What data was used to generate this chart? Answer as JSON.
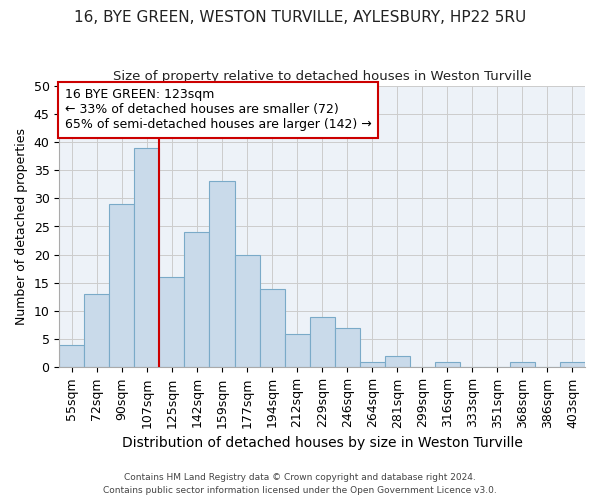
{
  "title1": "16, BYE GREEN, WESTON TURVILLE, AYLESBURY, HP22 5RU",
  "title2": "Size of property relative to detached houses in Weston Turville",
  "xlabel": "Distribution of detached houses by size in Weston Turville",
  "ylabel": "Number of detached properties",
  "bin_labels": [
    "55sqm",
    "72sqm",
    "90sqm",
    "107sqm",
    "125sqm",
    "142sqm",
    "159sqm",
    "177sqm",
    "194sqm",
    "212sqm",
    "229sqm",
    "246sqm",
    "264sqm",
    "281sqm",
    "299sqm",
    "316sqm",
    "333sqm",
    "351sqm",
    "368sqm",
    "386sqm",
    "403sqm"
  ],
  "bar_heights": [
    4,
    13,
    29,
    39,
    16,
    24,
    33,
    20,
    14,
    6,
    9,
    7,
    1,
    2,
    0,
    1,
    0,
    0,
    1,
    0,
    1
  ],
  "bar_color": "#c9daea",
  "bar_edge_color": "#7aaac8",
  "vline_color": "#cc0000",
  "vline_x_index": 4,
  "annotation_text": "16 BYE GREEN: 123sqm\n← 33% of detached houses are smaller (72)\n65% of semi-detached houses are larger (142) →",
  "annotation_box_color": "white",
  "annotation_box_edge": "#cc0000",
  "ylim": [
    0,
    50
  ],
  "yticks": [
    0,
    5,
    10,
    15,
    20,
    25,
    30,
    35,
    40,
    45,
    50
  ],
  "footer1": "Contains HM Land Registry data © Crown copyright and database right 2024.",
  "footer2": "Contains public sector information licensed under the Open Government Licence v3.0.",
  "grid_color": "#cccccc",
  "bg_color": "#edf2f8",
  "title1_fontsize": 11,
  "title2_fontsize": 9.5,
  "ylabel_fontsize": 9,
  "xlabel_fontsize": 10,
  "tick_fontsize": 9,
  "annot_fontsize": 9
}
